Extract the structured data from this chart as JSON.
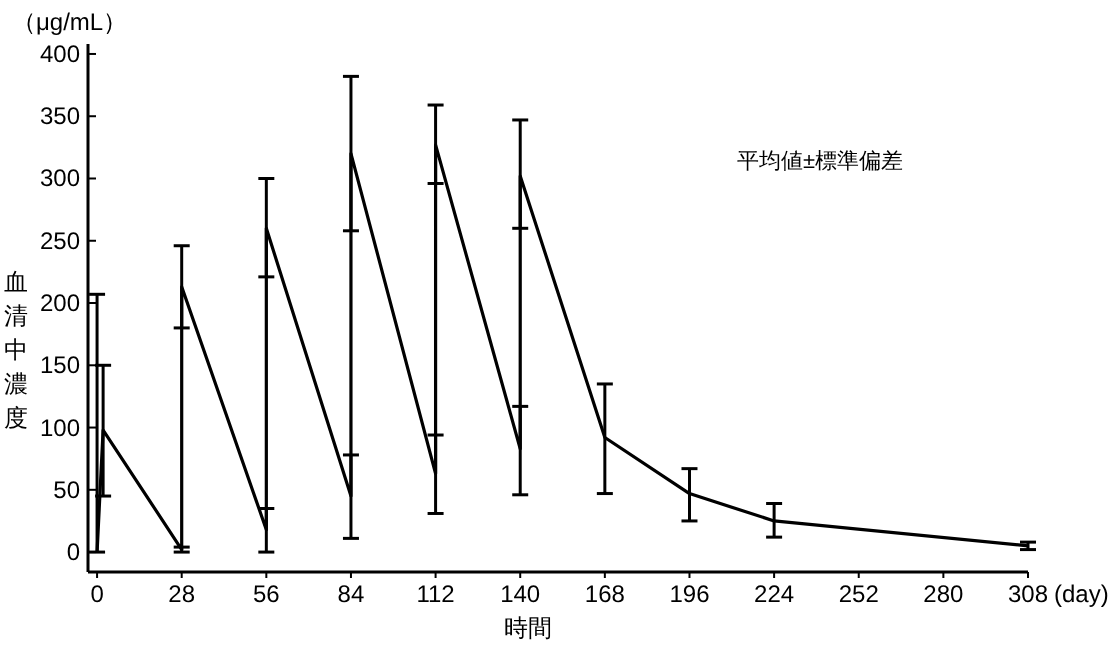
{
  "chart_data": {
    "type": "line",
    "ylabel": "血清中濃度",
    "xlabel": "時間",
    "annotations": [
      "（μg/mL）",
      "(day)",
      "平均値±標準偏差"
    ],
    "x": [
      0,
      2,
      28,
      28,
      56,
      56,
      84,
      84,
      112,
      112,
      140,
      140,
      168,
      196,
      224,
      308
    ],
    "series": [
      {
        "color": "#000000",
        "values": [
          0,
          98,
          2,
          213,
          18,
          260,
          45,
          320,
          63,
          327,
          83,
          302,
          92,
          47,
          25,
          5
        ],
        "errors": [
          [
            0,
            207
          ],
          [
            45,
            150
          ],
          [
            0,
            4
          ],
          [
            180,
            246
          ],
          [
            0,
            35
          ],
          [
            221,
            300
          ],
          [
            11,
            78
          ],
          [
            258,
            382
          ],
          [
            31,
            94
          ],
          [
            296,
            359
          ],
          [
            46,
            117
          ],
          [
            260,
            347
          ],
          [
            47,
            135
          ],
          [
            25,
            67
          ],
          [
            12,
            39
          ],
          [
            2,
            8
          ]
        ]
      }
    ],
    "xlim": [
      -3,
      308
    ],
    "ylim": [
      -16,
      408
    ],
    "xticks": [
      0,
      28,
      56,
      84,
      112,
      140,
      168,
      196,
      224,
      252,
      280,
      308
    ],
    "yticks": [
      0,
      50,
      100,
      150,
      200,
      250,
      300,
      350,
      400
    ],
    "grid": false,
    "marker": "none",
    "line_style": "solid"
  }
}
